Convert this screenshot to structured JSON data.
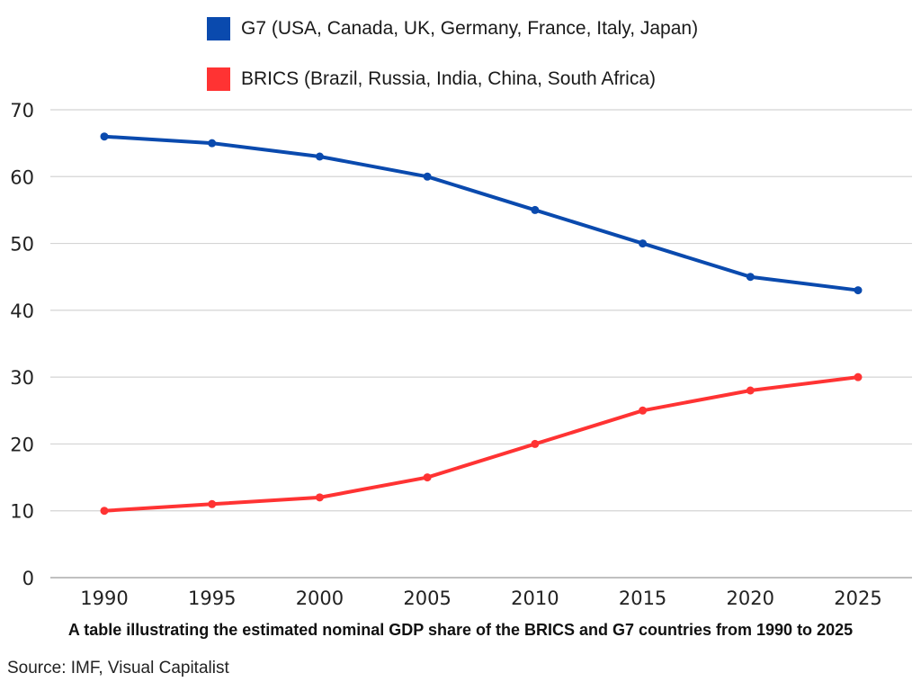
{
  "chart_data": {
    "type": "line",
    "title": "",
    "caption": "A table illustrating the estimated nominal GDP share of the BRICS and G7 countries from 1990 to 2025",
    "source": "Source: IMF, Visual Capitalist",
    "xlabel": "",
    "ylabel": "",
    "x": [
      "1990",
      "1995",
      "2000",
      "2005",
      "2010",
      "2015",
      "2020",
      "2025"
    ],
    "yticks": [
      0,
      10,
      20,
      30,
      40,
      50,
      60,
      70
    ],
    "ylim": [
      0,
      70
    ],
    "grid": true,
    "legend_position": "top-center",
    "series": [
      {
        "name": "G7 (USA, Canada, UK, Germany, France, Italy, Japan)",
        "color": "#0A4AAE",
        "values": [
          66,
          65,
          63,
          60,
          55,
          50,
          45,
          43
        ]
      },
      {
        "name": "BRICS (Brazil, Russia, India, China, South Africa)",
        "color": "#FF3333",
        "values": [
          10,
          11,
          12,
          15,
          20,
          25,
          28,
          30
        ]
      }
    ]
  }
}
